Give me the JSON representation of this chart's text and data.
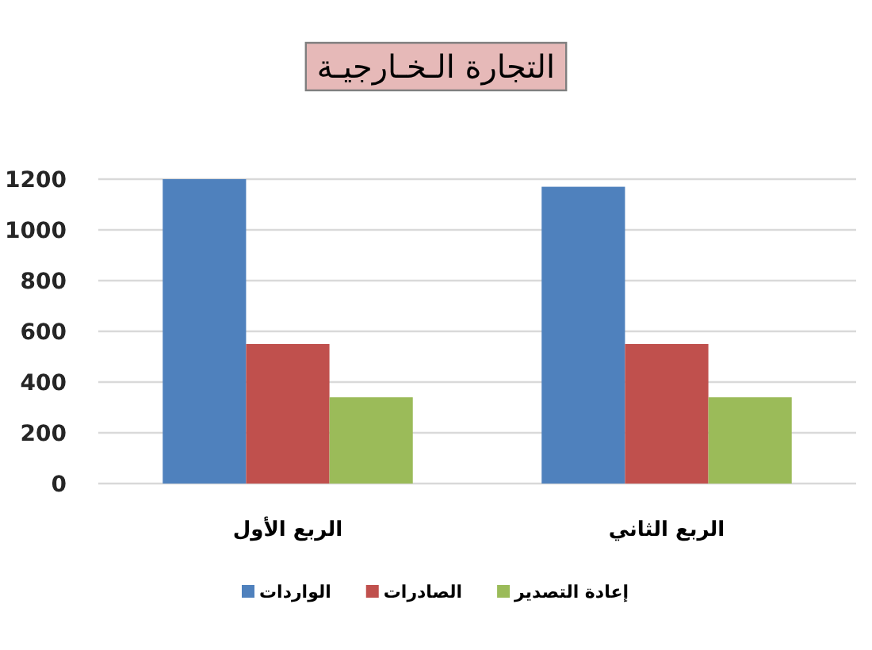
{
  "chart_data": {
    "type": "bar",
    "title": "التجارة الـخـارجيـة",
    "categories": [
      "الربع الأول",
      "الربع الثاني"
    ],
    "series": [
      {
        "name": "الواردات",
        "color": "#4f81bd",
        "values": [
          1200,
          1170
        ]
      },
      {
        "name": "الصادرات",
        "color": "#c0504d",
        "values": [
          550,
          550
        ]
      },
      {
        "name": "إعادة التصدير",
        "color": "#9bbb59",
        "values": [
          340,
          340
        ]
      }
    ],
    "ylim": [
      0,
      1200
    ],
    "yticks": [
      0,
      200,
      400,
      600,
      800,
      1000,
      1200
    ],
    "grid": "y",
    "legend": "bottom"
  }
}
